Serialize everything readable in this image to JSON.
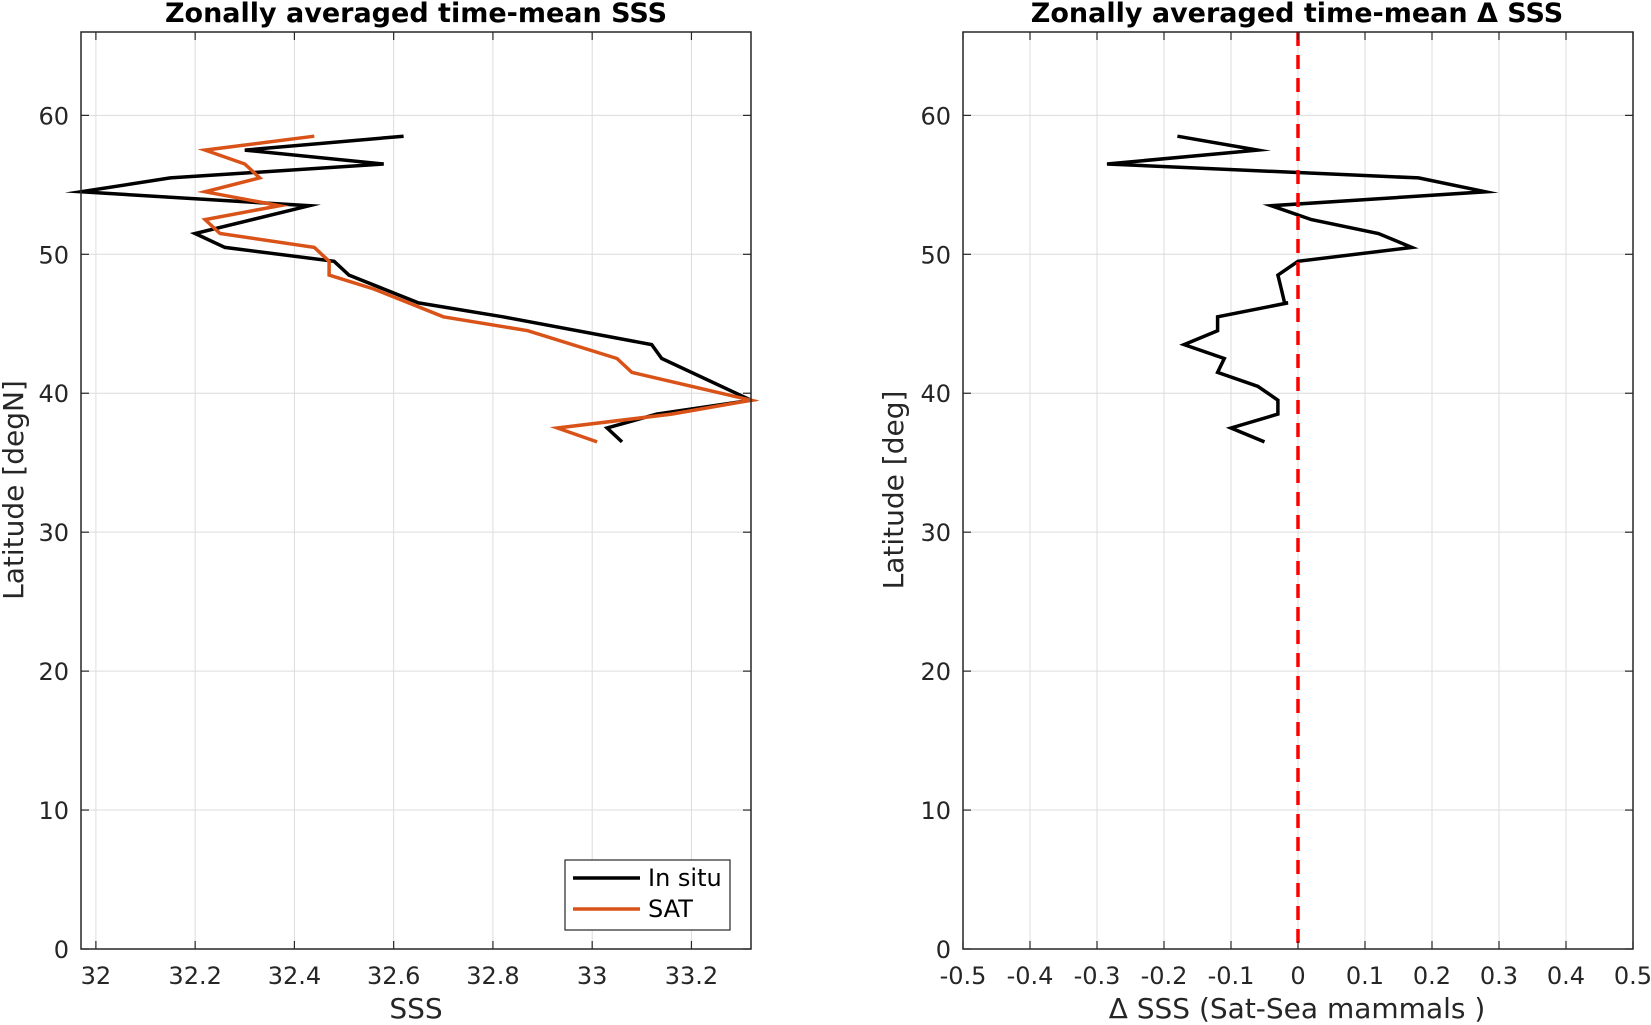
{
  "chart_data": [
    {
      "type": "line",
      "title": "Zonally averaged time-mean SSS",
      "xlabel": "SSS",
      "ylabel": "Latitude [degN]",
      "xlim": [
        31.97,
        33.32
      ],
      "ylim": [
        0,
        66
      ],
      "xticks": [
        32,
        32.2,
        32.4,
        32.6,
        32.8,
        33,
        33.2
      ],
      "xtick_labels": [
        "32",
        "32.2",
        "32.4",
        "32.6",
        "32.8",
        "33",
        "33.2"
      ],
      "yticks": [
        0,
        10,
        20,
        30,
        40,
        50,
        60
      ],
      "ytick_labels": [
        "0",
        "10",
        "20",
        "30",
        "40",
        "50",
        "60"
      ],
      "grid": true,
      "legend": "bottom-right",
      "series": [
        {
          "name": "In situ",
          "color": "#000000",
          "x": [
            32.62,
            32.3,
            32.58,
            32.15,
            31.97,
            32.43,
            32.2,
            32.26,
            32.48,
            32.51,
            32.58,
            32.65,
            32.82,
            33.12,
            33.14,
            33.32,
            33.13,
            33.03,
            33.06
          ],
          "y": [
            58.5,
            57.5,
            56.5,
            55.5,
            54.5,
            53.5,
            51.5,
            50.5,
            49.5,
            48.5,
            47.5,
            46.5,
            45.5,
            43.5,
            42.5,
            39.5,
            38.5,
            37.5,
            36.5
          ]
        },
        {
          "name": "SAT",
          "color": "#D95319",
          "x": [
            32.44,
            32.22,
            32.3,
            32.33,
            32.22,
            32.37,
            32.22,
            32.25,
            32.44,
            32.47,
            32.47,
            32.56,
            32.63,
            32.7,
            32.87,
            33.05,
            33.08,
            33.32,
            33.16,
            32.93,
            33.01
          ],
          "y": [
            58.5,
            57.5,
            56.5,
            55.5,
            54.5,
            53.5,
            52.5,
            51.5,
            50.5,
            49.5,
            48.5,
            47.5,
            46.5,
            45.5,
            44.5,
            42.5,
            41.5,
            39.5,
            38.5,
            37.5,
            36.5
          ]
        }
      ]
    },
    {
      "type": "line",
      "title": "Zonally averaged time-mean Δ SSS",
      "xlabel": "Δ SSS (Sat-Sea mammals )",
      "ylabel": "Latitude [deg]",
      "xlim": [
        -0.5,
        0.5
      ],
      "ylim": [
        0,
        66
      ],
      "xticks": [
        -0.5,
        -0.4,
        -0.3,
        -0.2,
        -0.1,
        0,
        0.1,
        0.2,
        0.3,
        0.4,
        0.5
      ],
      "xtick_labels": [
        "-0.5",
        "-0.4",
        "-0.3",
        "-0.2",
        "-0.1",
        "0",
        "0.1",
        "0.2",
        "0.3",
        "0.4",
        "0.5"
      ],
      "yticks": [
        0,
        10,
        20,
        30,
        40,
        50,
        60
      ],
      "ytick_labels": [
        "0",
        "10",
        "20",
        "30",
        "40",
        "50",
        "60"
      ],
      "grid": true,
      "reference_line": {
        "x": 0,
        "color": "#FF0000",
        "style": "dashed"
      },
      "series": [
        {
          "color": "#000000",
          "x": [
            -0.18,
            -0.06,
            -0.285,
            0.18,
            0.28,
            -0.04,
            0.02,
            0.12,
            0.17,
            0,
            -0.03,
            -0.025,
            -0.02,
            -0.02,
            -0.015,
            -0.12,
            -0.12,
            -0.17,
            -0.11,
            -0.12,
            -0.06,
            -0.03,
            -0.03,
            -0.1,
            -0.05
          ],
          "y": [
            58.5,
            57.5,
            56.5,
            55.5,
            54.5,
            53.5,
            52.5,
            51.5,
            50.5,
            49.5,
            48.5,
            47.5,
            46.5,
            46.5,
            46.5,
            45.5,
            44.5,
            43.5,
            42.5,
            41.5,
            40.5,
            39.5,
            38.5,
            37.5,
            36.5
          ]
        }
      ]
    }
  ]
}
